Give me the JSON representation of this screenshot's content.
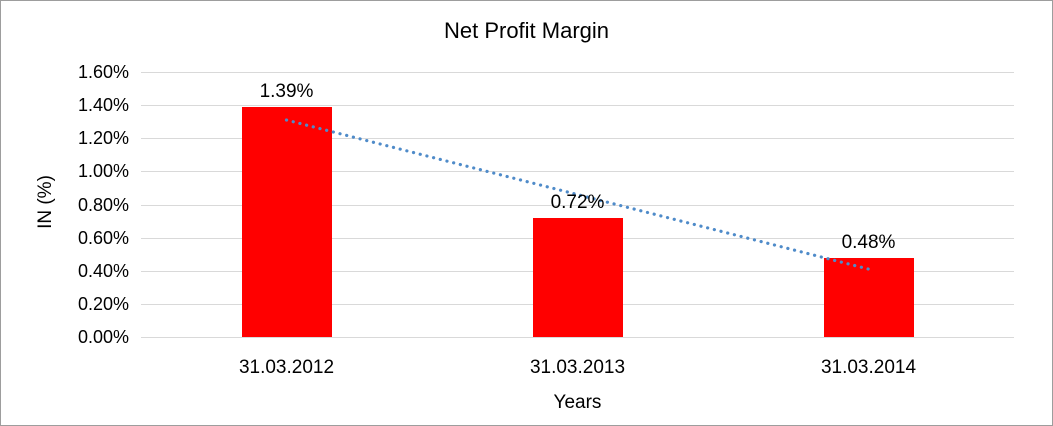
{
  "chart_data": {
    "type": "bar",
    "title": "Net Profit Margin",
    "xlabel": "Years",
    "ylabel": "IN (%)",
    "categories": [
      "31.03.2012",
      "31.03.2013",
      "31.03.2014"
    ],
    "values": [
      1.39,
      0.72,
      0.48
    ],
    "data_labels": [
      "1.39%",
      "0.72%",
      "0.48%"
    ],
    "y_ticks": [
      "1.60%",
      "1.40%",
      "1.20%",
      "1.00%",
      "0.80%",
      "0.60%",
      "0.40%",
      "0.20%",
      "0.00%"
    ],
    "ylim": [
      0,
      1.6
    ],
    "grid": true,
    "legend": "none",
    "bar_color": "#ff0000",
    "text_color": "#000000",
    "gridline_color": "#d9d9d9",
    "trendline": {
      "type": "linear",
      "style": "dotted",
      "color": "#4f8bc9",
      "start_value": 1.31,
      "end_value": 0.41
    }
  }
}
